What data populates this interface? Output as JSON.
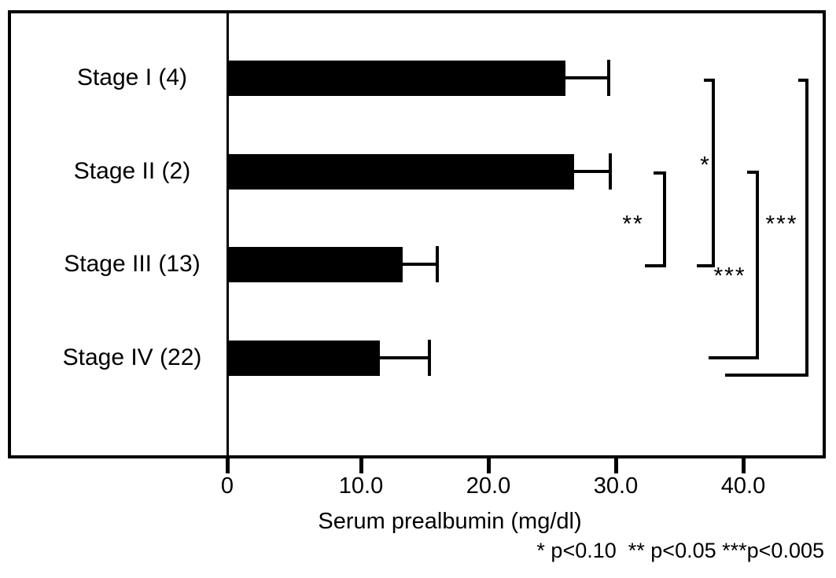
{
  "chart_data": {
    "type": "bar",
    "orientation": "horizontal",
    "title": "",
    "xlabel": "Serum prealbumin (mg/dl)",
    "categories": [
      "Stage I (4)",
      "Stage II (2)",
      "Stage III (13)",
      "Stage IV (22)"
    ],
    "values": [
      26.2,
      26.9,
      13.6,
      11.8
    ],
    "errors_plus": [
      3.4,
      2.8,
      2.7,
      3.9
    ],
    "bar_color": "#000000",
    "background_color": "#ffffff",
    "xlim": [
      0,
      46
    ],
    "x_ticks": [
      0,
      10,
      20,
      30,
      40
    ],
    "x_tick_labels": [
      "0",
      "10.0",
      "20.0",
      "30.0",
      "40.0"
    ],
    "grid": false,
    "legend": false,
    "significance_brackets": [
      {
        "label": "**",
        "between": [
          "Stage II (2)",
          "Stage III (13)"
        ],
        "meaning": "p<0.05"
      },
      {
        "label": "*",
        "between": [
          "Stage I (4)",
          "Stage III (13)"
        ],
        "meaning": "p<0.10"
      },
      {
        "label": "***",
        "between": [
          "Stage II (2)",
          "Stage IV (22)"
        ],
        "meaning": "p<0.005"
      },
      {
        "label": "***",
        "between": [
          "Stage I (4)",
          "Stage IV (22)"
        ],
        "meaning": "p<0.005"
      }
    ],
    "footnote": "* p<0.10  ** p<0.05 ***p<0.005"
  }
}
